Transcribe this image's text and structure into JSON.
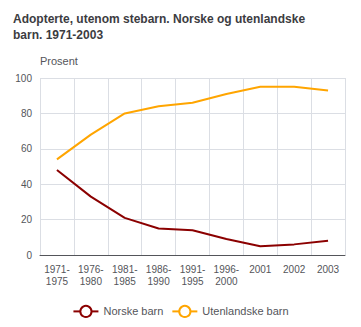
{
  "chart_data": {
    "type": "line",
    "title": "Adopterte, utenom stebarn. Norske og utenlandske\nbarn. 1971-2003",
    "ylabel": "Prosent",
    "categories": [
      "1971-\n1975",
      "1976-\n1980",
      "1981-\n1985",
      "1986-\n1990",
      "1991-\n1995",
      "1996-\n2000",
      "2001",
      "2002",
      "2003"
    ],
    "series": [
      {
        "name": "Norske barn",
        "color": "#8B0000",
        "values": [
          48,
          33,
          21,
          15,
          14,
          9,
          5,
          6,
          8
        ]
      },
      {
        "name": "Utenlandske barn",
        "color": "#FFA500",
        "values": [
          54,
          68,
          80,
          84,
          86,
          91,
          95,
          95,
          93
        ]
      }
    ],
    "ylim": [
      0,
      100
    ],
    "yticks": [
      0,
      20,
      40,
      60,
      80,
      100
    ],
    "grid": true,
    "legend": "bottom"
  }
}
